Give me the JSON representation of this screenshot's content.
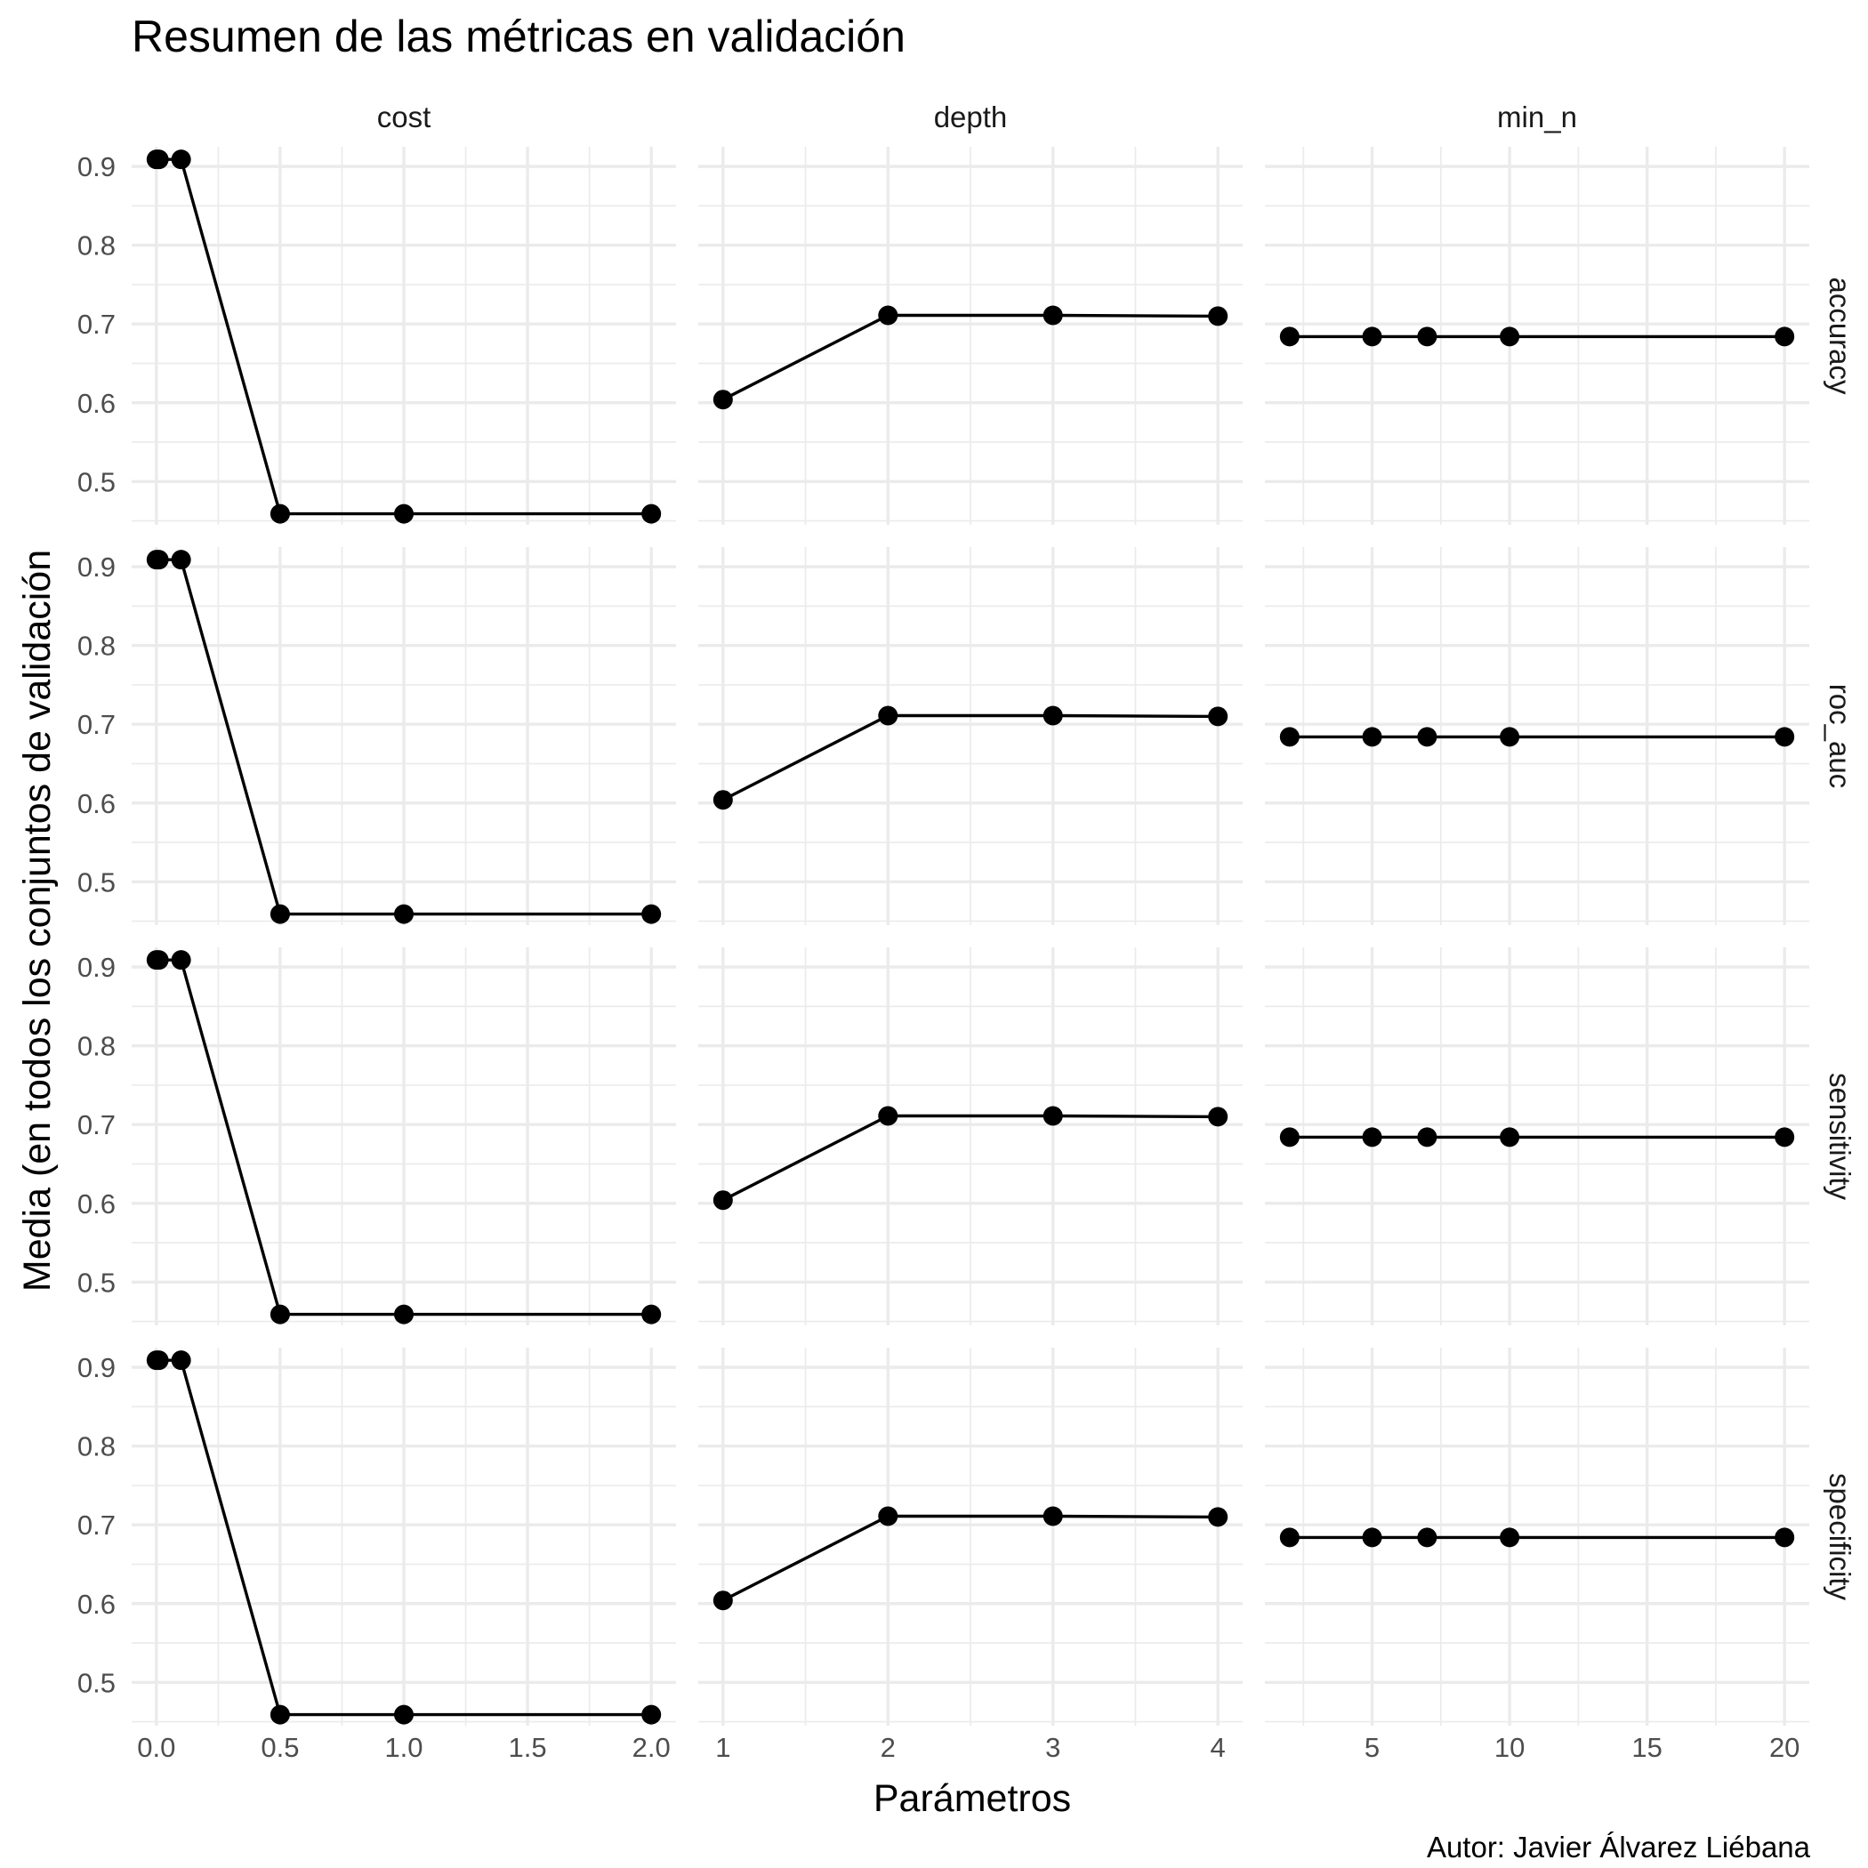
{
  "chart_data": {
    "type": "line",
    "title": "Resumen de las métricas en validación",
    "xlabel": "Parámetros",
    "ylabel": "Media (en todos los conjuntos de validación",
    "caption": "Autor: Javier Álvarez Liébana",
    "grid": true,
    "legend": "none",
    "colors": {
      "line": "#000000",
      "grid": "#ebebeb",
      "tick_text": "#4d4d4d"
    },
    "ylim": [
      0.445,
      0.925
    ],
    "y_ticks": [
      0.5,
      0.6,
      0.7,
      0.8,
      0.9
    ],
    "y_tick_labels": [
      "0.5",
      "0.6",
      "0.7",
      "0.8",
      "0.9"
    ],
    "columns": [
      {
        "name": "cost",
        "xlim": [
          -0.1,
          2.1
        ],
        "x_ticks": [
          0,
          0.5,
          1,
          1.5,
          2
        ],
        "x_tick_labels": [
          "0.0",
          "0.5",
          "1.0",
          "1.5",
          "2.0"
        ],
        "x": [
          0,
          0.01,
          0.1,
          0.5,
          1,
          2
        ]
      },
      {
        "name": "depth",
        "xlim": [
          0.85,
          4.15
        ],
        "x_ticks": [
          1,
          2,
          3,
          4
        ],
        "x_tick_labels": [
          "1",
          "2",
          "3",
          "4"
        ],
        "x": [
          1,
          2,
          3,
          4
        ]
      },
      {
        "name": "min_n",
        "xlim": [
          1.1,
          20.9
        ],
        "x_ticks": [
          5,
          10,
          15,
          20
        ],
        "x_tick_labels": [
          "5",
          "10",
          "15",
          "20"
        ],
        "x": [
          2,
          5,
          7,
          10,
          20
        ]
      }
    ],
    "rows": [
      "accuracy",
      "roc_auc",
      "sensitivity",
      "specificity"
    ],
    "panels": [
      {
        "row": "accuracy",
        "column": "cost",
        "y": [
          0.909,
          0.909,
          0.909,
          0.459,
          0.459,
          0.459
        ]
      },
      {
        "row": "accuracy",
        "column": "depth",
        "y": [
          0.604,
          0.711,
          0.711,
          0.71
        ]
      },
      {
        "row": "accuracy",
        "column": "min_n",
        "y": [
          0.684,
          0.684,
          0.684,
          0.684,
          0.684
        ]
      },
      {
        "row": "roc_auc",
        "column": "cost",
        "y": [
          0.909,
          0.909,
          0.909,
          0.459,
          0.459,
          0.459
        ]
      },
      {
        "row": "roc_auc",
        "column": "depth",
        "y": [
          0.604,
          0.711,
          0.711,
          0.71
        ]
      },
      {
        "row": "roc_auc",
        "column": "min_n",
        "y": [
          0.684,
          0.684,
          0.684,
          0.684,
          0.684
        ]
      },
      {
        "row": "sensitivity",
        "column": "cost",
        "y": [
          0.909,
          0.909,
          0.909,
          0.459,
          0.459,
          0.459
        ]
      },
      {
        "row": "sensitivity",
        "column": "depth",
        "y": [
          0.604,
          0.711,
          0.711,
          0.71
        ]
      },
      {
        "row": "sensitivity",
        "column": "min_n",
        "y": [
          0.684,
          0.684,
          0.684,
          0.684,
          0.684
        ]
      },
      {
        "row": "specificity",
        "column": "cost",
        "y": [
          0.909,
          0.909,
          0.909,
          0.459,
          0.459,
          0.459
        ]
      },
      {
        "row": "specificity",
        "column": "depth",
        "y": [
          0.604,
          0.711,
          0.711,
          0.71
        ]
      },
      {
        "row": "specificity",
        "column": "min_n",
        "y": [
          0.684,
          0.684,
          0.684,
          0.684,
          0.684
        ]
      }
    ]
  }
}
